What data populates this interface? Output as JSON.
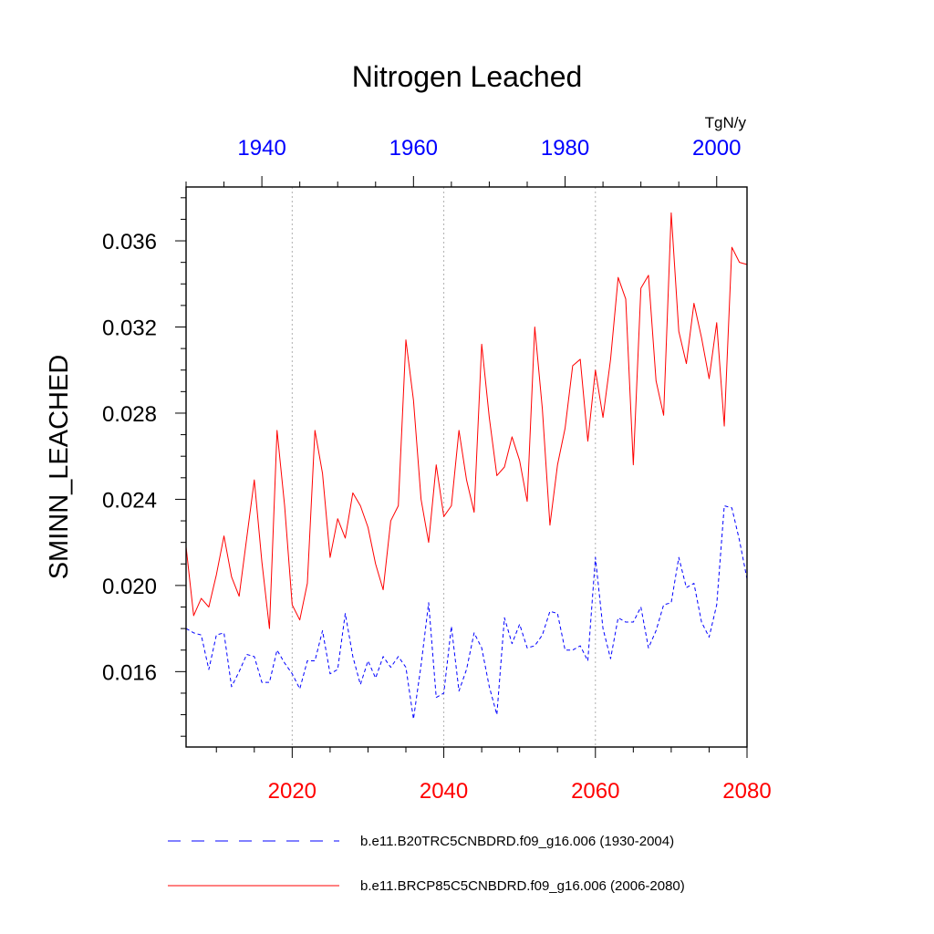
{
  "chart_data": {
    "type": "line",
    "title": "Nitrogen Leached",
    "ylabel": "SMINN_LEACHED",
    "units": "TgN/y",
    "ylim": [
      0.0125,
      0.0385
    ],
    "y_ticks": [
      "0.016",
      "0.020",
      "0.024",
      "0.028",
      "0.032",
      "0.036"
    ],
    "y_tick_values": [
      0.016,
      0.02,
      0.024,
      0.028,
      0.032,
      0.036
    ],
    "top_axis": {
      "color": "#0000ff",
      "xlim": [
        1930,
        2004
      ],
      "tick_labels": [
        "1940",
        "1960",
        "1980",
        "2000"
      ],
      "tick_values": [
        1940,
        1960,
        1980,
        2000
      ]
    },
    "bottom_axis": {
      "color": "#ff0000",
      "xlim": [
        2006,
        2080
      ],
      "tick_labels": [
        "2020",
        "2040",
        "2060",
        "2080"
      ],
      "tick_values": [
        2020,
        2040,
        2060,
        2080
      ]
    },
    "gridlines_x": [
      2020,
      2040,
      2060
    ],
    "series": [
      {
        "name": "b.e11.B20TRC5CNBDRD.f09_g16.006 (1930-2004)",
        "axis": "top",
        "color": "#0000ff",
        "style": "dashed",
        "x_start": 1930,
        "values": [
          0.018,
          0.0178,
          0.0177,
          0.0161,
          0.0177,
          0.0178,
          0.0153,
          0.016,
          0.0168,
          0.0167,
          0.0155,
          0.0155,
          0.017,
          0.0164,
          0.0159,
          0.0152,
          0.0165,
          0.0165,
          0.0179,
          0.0159,
          0.0161,
          0.0187,
          0.0167,
          0.0154,
          0.0165,
          0.0157,
          0.0167,
          0.0162,
          0.0167,
          0.0162,
          0.0138,
          0.0163,
          0.0192,
          0.0148,
          0.015,
          0.0181,
          0.0151,
          0.0161,
          0.0178,
          0.0171,
          0.0153,
          0.014,
          0.0185,
          0.0173,
          0.0182,
          0.0171,
          0.0172,
          0.0177,
          0.0188,
          0.0187,
          0.017,
          0.017,
          0.0172,
          0.0165,
          0.0213,
          0.018,
          0.0166,
          0.0185,
          0.0183,
          0.0183,
          0.019,
          0.0171,
          0.0179,
          0.0191,
          0.0192,
          0.0213,
          0.0199,
          0.0201,
          0.0183,
          0.0176,
          0.0191,
          0.0237,
          0.0236,
          0.0221,
          0.0203
        ]
      },
      {
        "name": "b.e11.BRCP85C5CNBDRD.f09_g16.006 (2006-2080)",
        "axis": "bottom",
        "color": "#ff0000",
        "style": "solid",
        "x_start": 2006,
        "values": [
          0.0218,
          0.0186,
          0.0194,
          0.019,
          0.0205,
          0.0223,
          0.0204,
          0.0195,
          0.0222,
          0.0249,
          0.0211,
          0.018,
          0.0272,
          0.0237,
          0.0191,
          0.0184,
          0.0201,
          0.0272,
          0.0252,
          0.0213,
          0.0231,
          0.0222,
          0.0243,
          0.0237,
          0.0227,
          0.021,
          0.0198,
          0.023,
          0.0237,
          0.0314,
          0.0286,
          0.024,
          0.022,
          0.0256,
          0.0232,
          0.0237,
          0.0272,
          0.0249,
          0.0234,
          0.0312,
          0.0278,
          0.0251,
          0.0255,
          0.0269,
          0.0258,
          0.0239,
          0.032,
          0.0282,
          0.0228,
          0.0256,
          0.0273,
          0.0302,
          0.0305,
          0.0267,
          0.03,
          0.0278,
          0.0305,
          0.0343,
          0.0333,
          0.0256,
          0.0338,
          0.0344,
          0.0295,
          0.0279,
          0.0373,
          0.0318,
          0.0303,
          0.0331,
          0.0315,
          0.0296,
          0.0322,
          0.0274,
          0.0357,
          0.035,
          0.0349
        ]
      }
    ],
    "legend_position": "bottom"
  }
}
